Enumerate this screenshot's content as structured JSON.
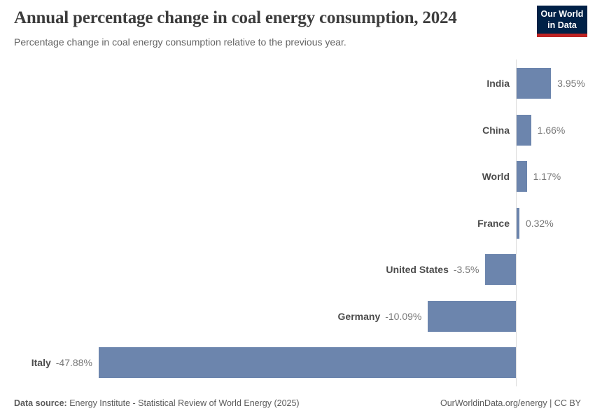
{
  "header": {
    "title": "Annual percentage change in coal energy consumption, 2024",
    "subtitle": "Percentage change in coal energy consumption relative to the previous year.",
    "logo": {
      "line1": "Our World",
      "line2": "in Data",
      "bg_color": "#002147",
      "accent_color": "#be2323"
    }
  },
  "chart_data": {
    "type": "bar",
    "orientation": "horizontal",
    "title": "Annual percentage change in coal energy consumption, 2024",
    "subtitle": "Percentage change in coal energy consumption relative to the previous year.",
    "categories": [
      "India",
      "China",
      "World",
      "France",
      "United States",
      "Germany",
      "Italy"
    ],
    "values": [
      3.95,
      1.66,
      1.17,
      0.32,
      -3.5,
      -10.09,
      -47.88
    ],
    "value_labels": [
      "3.95%",
      "1.66%",
      "1.17%",
      "0.32%",
      "-3.5%",
      "-10.09%",
      "-47.88%"
    ],
    "unit": "%",
    "xlim": [
      -47.88,
      3.95
    ],
    "bar_color": "#6c85ad",
    "axis_line_color": "#dcdcdc",
    "grid": false,
    "legend": "none",
    "value_label_position": "bar-end",
    "category_label_position": "baseline-side"
  },
  "footer": {
    "source_label": "Data source:",
    "source_text": " Energy Institute - Statistical Review of World Energy (2025)",
    "credit": "OurWorldinData.org/energy | CC BY"
  }
}
